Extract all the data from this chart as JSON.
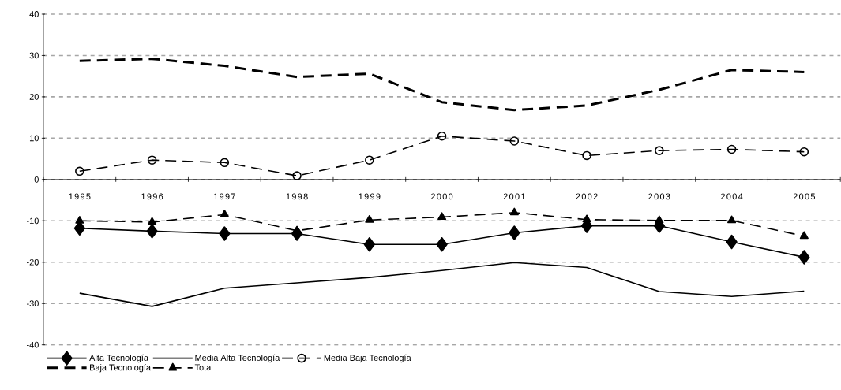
{
  "chart_data": {
    "type": "line",
    "categories": [
      "1995",
      "1996",
      "1997",
      "1998",
      "1999",
      "2000",
      "2001",
      "2002",
      "2003",
      "2004",
      "2005"
    ],
    "ylim": [
      -40,
      40
    ],
    "yticks": [
      -40,
      -30,
      -20,
      -10,
      0,
      10,
      20,
      30,
      40
    ],
    "grid": "y",
    "legend": "bottom",
    "series": [
      {
        "name": "Alta Tecnología",
        "color": "#000000",
        "marker": "diamond",
        "line_style": "solid",
        "values": [
          -11.8,
          -12.5,
          -13.1,
          -13.1,
          -15.7,
          -15.7,
          -12.9,
          -11.2,
          -11.2,
          -15.1,
          -18.8
        ]
      },
      {
        "name": "Media Alta Tecnología",
        "color": "#000000",
        "marker": "none",
        "line_style": "solid",
        "values": [
          -27.5,
          -30.7,
          -26.3,
          -25.0,
          -23.7,
          -22.0,
          -20.1,
          -21.3,
          -27.1,
          -28.3,
          -27.0
        ]
      },
      {
        "name": "Media Baja Tecnología",
        "color": "#000000",
        "marker": "circle",
        "line_style": "dashed",
        "values": [
          2.0,
          4.7,
          4.1,
          0.9,
          4.7,
          10.5,
          9.3,
          5.8,
          7.0,
          7.3,
          6.7
        ]
      },
      {
        "name": "Baja Tecnología",
        "color": "#000000",
        "marker": "none",
        "line_style": "dashed",
        "values": [
          28.7,
          29.2,
          27.5,
          24.8,
          25.6,
          18.7,
          16.8,
          17.9,
          21.7,
          26.5,
          26.0
        ]
      },
      {
        "name": "Total",
        "color": "#000000",
        "marker": "triangle",
        "line_style": "dashed",
        "values": [
          -10.0,
          -10.3,
          -8.5,
          -12.4,
          -9.8,
          -9.1,
          -8.0,
          -9.7,
          -9.9,
          -9.9,
          -13.7
        ]
      }
    ]
  }
}
